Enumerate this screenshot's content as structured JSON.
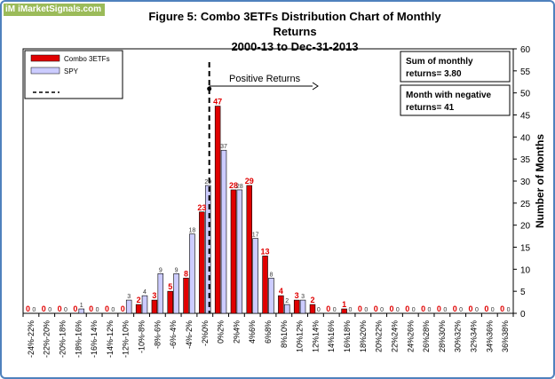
{
  "logo": {
    "text": "iMarketSignals.com",
    "mark": "iM"
  },
  "chart_data": {
    "type": "bar",
    "title": "Figure 5:  Combo 3ETFs  Distribution Chart of Monthly Returns",
    "subtitle": "2000-13   to Dec-31-2013",
    "xlabel": "",
    "ylabel": "Number of Months",
    "ylim": [
      0,
      60
    ],
    "y_ticks": [
      0,
      5,
      10,
      15,
      20,
      25,
      30,
      35,
      40,
      45,
      50,
      55,
      60
    ],
    "y_axis_side": "right",
    "grid": false,
    "legend_position": "top-left",
    "categories": [
      "-24%-22%",
      "-22%-20%",
      "-20%-18%",
      "-18%-16%",
      "-16%-14%",
      "-14%-12%",
      "-12%-10%",
      "-10%-8%",
      "-8%-6%",
      "-6%-4%",
      "-4%-2%",
      "-2%0%",
      "0%2%",
      "2%4%",
      "4%6%",
      "6%8%",
      "8%10%",
      "10%12%",
      "12%14%",
      "14%16%",
      "16%18%",
      "18%20%",
      "20%22%",
      "22%24%",
      "24%26%",
      "26%28%",
      "28%30%",
      "30%32%",
      "32%34%",
      "34%36%",
      "36%38%"
    ],
    "series": [
      {
        "name": "Combo 3ETFs",
        "color": "#e00000",
        "values": [
          0,
          0,
          0,
          0,
          0,
          0,
          0,
          2,
          3,
          5,
          8,
          23,
          47,
          28,
          29,
          13,
          4,
          3,
          2,
          0,
          1,
          0,
          0,
          0,
          0,
          0,
          0,
          0,
          0,
          0,
          0
        ]
      },
      {
        "name": "SPY",
        "color": "#ccccff",
        "values": [
          0,
          0,
          0,
          1,
          0,
          0,
          3,
          4,
          9,
          9,
          18,
          29,
          37,
          28,
          17,
          8,
          2,
          3,
          0,
          0,
          0,
          0,
          0,
          0,
          0,
          0,
          0,
          0,
          0,
          0,
          0
        ]
      }
    ],
    "legend_dashed_label": "",
    "annotations": {
      "arrow_label": "Positive Returns",
      "box_sum_line1": "Sum of monthly",
      "box_sum_line2": "returns= 3.80",
      "box_neg_line1": "Month with negative",
      "box_neg_line2": "returns=  41"
    }
  }
}
